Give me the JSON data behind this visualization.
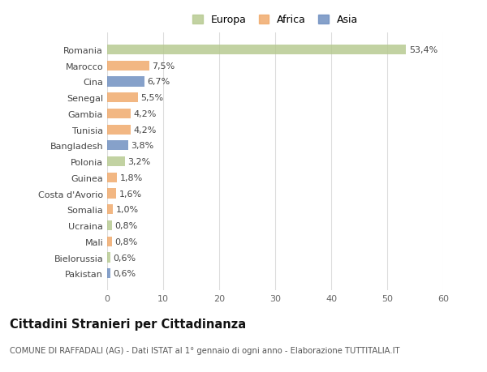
{
  "countries": [
    "Romania",
    "Marocco",
    "Cina",
    "Senegal",
    "Gambia",
    "Tunisia",
    "Bangladesh",
    "Polonia",
    "Guinea",
    "Costa d'Avorio",
    "Somalia",
    "Ucraina",
    "Mali",
    "Bielorussia",
    "Pakistan"
  ],
  "values": [
    53.4,
    7.5,
    6.7,
    5.5,
    4.2,
    4.2,
    3.8,
    3.2,
    1.8,
    1.6,
    1.0,
    0.8,
    0.8,
    0.6,
    0.6
  ],
  "labels": [
    "53,4%",
    "7,5%",
    "6,7%",
    "5,5%",
    "4,2%",
    "4,2%",
    "3,8%",
    "3,2%",
    "1,8%",
    "1,6%",
    "1,0%",
    "0,8%",
    "0,8%",
    "0,6%",
    "0,6%"
  ],
  "colors": [
    "#b5c98e",
    "#f0a868",
    "#6b8cbf",
    "#f0a868",
    "#f0a868",
    "#f0a868",
    "#6b8cbf",
    "#b5c98e",
    "#f0a868",
    "#f0a868",
    "#f0a868",
    "#b5c98e",
    "#f0a868",
    "#b5c98e",
    "#6b8cbf"
  ],
  "legend_labels": [
    "Europa",
    "Africa",
    "Asia"
  ],
  "legend_colors": [
    "#b5c98e",
    "#f0a868",
    "#6b8cbf"
  ],
  "title": "Cittadini Stranieri per Cittadinanza",
  "subtitle": "COMUNE DI RAFFADALI (AG) - Dati ISTAT al 1° gennaio di ogni anno - Elaborazione TUTTITALIA.IT",
  "xlim": [
    0,
    60
  ],
  "xticks": [
    0,
    10,
    20,
    30,
    40,
    50,
    60
  ],
  "background_color": "#ffffff",
  "grid_color": "#dddddd",
  "bar_height": 0.62,
  "label_fontsize": 8.0,
  "tick_fontsize": 8.0,
  "title_fontsize": 10.5,
  "subtitle_fontsize": 7.2,
  "alpha": 0.82
}
